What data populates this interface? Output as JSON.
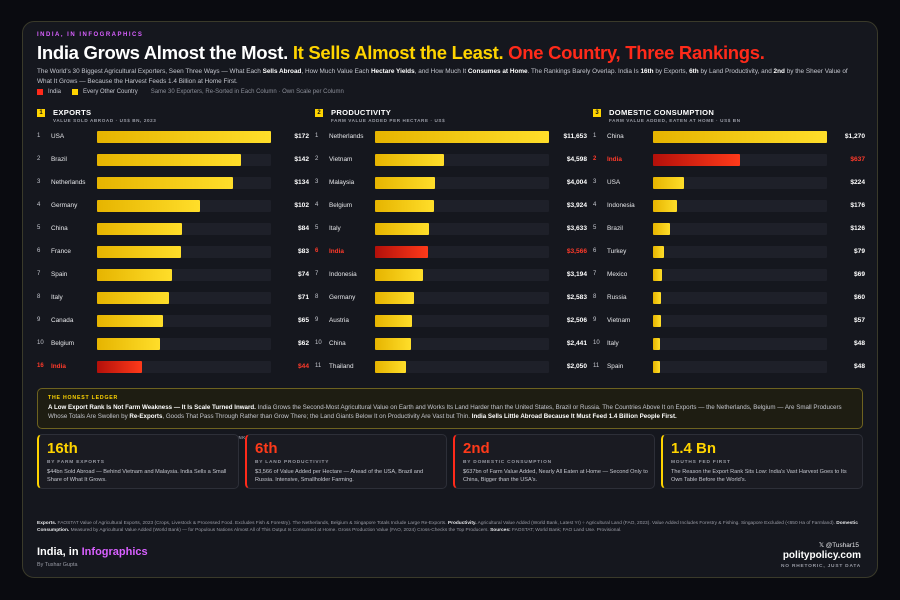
{
  "brand_top": "INDIA, IN INFOGRAPHICS",
  "headline": {
    "part1": "India Grows Almost the Most.",
    "part2": "It Sells Almost the Least.",
    "part3": "One Country, Three Rankings."
  },
  "dek": {
    "s1": "The World's 30 Biggest Agricultural Exporters, Seen Three Ways — What Each ",
    "b1": "Sells Abroad",
    "s2": ", How Much Value Each ",
    "b2": "Hectare Yields",
    "s3": ", and How Much It ",
    "b3": "Consumes at Home",
    "s4": ". The Rankings Barely Overlap. India Is ",
    "b4": "16th",
    "s5": " by Exports, ",
    "b5": "6th",
    "s6": " by Land Productivity, and ",
    "b6": "2nd",
    "s7": " by the Sheer Value of What It Grows — Because the Harvest Feeds 1.4 Billion at Home First."
  },
  "legend": {
    "india": "India",
    "other": "Every Other Country",
    "note": "Same 30 Exporters, Re-Sorted in Each Column · Own Scale per Column"
  },
  "colors": {
    "india": "#ff2a1a",
    "other": "#ffd400"
  },
  "chart_data": [
    {
      "type": "bar",
      "num": "1",
      "title": "EXPORTS",
      "subtitle": "VALUE SOLD ABROAD · US$ BN, 2023",
      "max": 172,
      "ranks": [
        "1",
        "2",
        "3",
        "4",
        "5",
        "6",
        "7",
        "8",
        "9",
        "10",
        "16"
      ],
      "categories": [
        "USA",
        "Brazil",
        "Netherlands",
        "Germany",
        "China",
        "France",
        "Spain",
        "Italy",
        "Canada",
        "Belgium",
        "India"
      ],
      "values": [
        172,
        142,
        134,
        102,
        84,
        83,
        74,
        71,
        65,
        62,
        44
      ],
      "labels": [
        "$172",
        "$142",
        "$134",
        "$102",
        "$84",
        "$83",
        "$74",
        "$71",
        "$65",
        "$62",
        "$44"
      ],
      "highlight": [
        10
      ],
      "note": "RANKS 11–15 NOT SHOWN"
    },
    {
      "type": "bar",
      "num": "2",
      "title": "PRODUCTIVITY",
      "subtitle": "FARM VALUE ADDED PER HECTARE · US$",
      "max": 11653,
      "ranks": [
        "1",
        "2",
        "3",
        "4",
        "5",
        "6",
        "7",
        "8",
        "9",
        "10",
        "11"
      ],
      "categories": [
        "Netherlands",
        "Vietnam",
        "Malaysia",
        "Belgium",
        "Italy",
        "India",
        "Indonesia",
        "Germany",
        "Austria",
        "China",
        "Thailand"
      ],
      "values": [
        11653,
        4598,
        4004,
        3924,
        3633,
        3566,
        3194,
        2583,
        2506,
        2441,
        2050
      ],
      "labels": [
        "$11,653",
        "$4,598",
        "$4,004",
        "$3,924",
        "$3,633",
        "$3,566",
        "$3,194",
        "$2,583",
        "$2,506",
        "$2,441",
        "$2,050"
      ],
      "highlight": [
        5
      ]
    },
    {
      "type": "bar",
      "num": "3",
      "title": "DOMESTIC CONSUMPTION",
      "subtitle": "FARM VALUE ADDED, EATEN AT HOME · US$ BN",
      "max": 1270,
      "ranks": [
        "1",
        "2",
        "3",
        "4",
        "5",
        "6",
        "7",
        "8",
        "9",
        "10",
        "11"
      ],
      "categories": [
        "China",
        "India",
        "USA",
        "Indonesia",
        "Brazil",
        "Turkey",
        "Mexico",
        "Russia",
        "Vietnam",
        "Italy",
        "Spain"
      ],
      "values": [
        1270,
        637,
        224,
        176,
        126,
        79,
        69,
        60,
        57,
        48,
        48
      ],
      "labels": [
        "$1,270",
        "$637",
        "$224",
        "$176",
        "$126",
        "$79",
        "$69",
        "$60",
        "$57",
        "$48",
        "$48"
      ],
      "highlight": [
        1
      ]
    }
  ],
  "ledger": {
    "title": "THE HONEST LEDGER",
    "b1": "A Low Export Rank Is Not Farm Weakness — It Is Scale Turned Inward.",
    "s1": " India Grows the Second-Most Agricultural Value on Earth and Works Its Land Harder than the United States, Brazil or Russia. The Countries Above It on Exports — the Netherlands, Belgium — Are Small Producers Whose Totals Are Swollen by ",
    "b2": "Re-Exports",
    "s2": ", Goods That Pass Through Rather than Grow There; the Land Giants Below It on Productivity Are Vast but Thin. ",
    "b3": "India Sells Little Abroad Because It Must Feed 1.4 Billion People First."
  },
  "stats": [
    {
      "big": "16th",
      "label": "BY FARM EXPORTS",
      "desc": "$44bn Sold Abroad — Behind Vietnam and Malaysia. India Sells a Small Share of What It Grows."
    },
    {
      "big": "6th",
      "label": "BY LAND PRODUCTIVITY",
      "desc": "$3,566 of Value Added per Hectare — Ahead of the USA, Brazil and Russia. Intensive, Smallholder Farming."
    },
    {
      "big": "2nd",
      "label": "BY DOMESTIC CONSUMPTION",
      "desc": "$637bn of Farm Value Added, Nearly All Eaten at Home — Second Only to China, Bigger than the USA's."
    },
    {
      "big": "1.4 Bn",
      "label": "MOUTHS FED FIRST",
      "desc": "The Reason the Export Rank Sits Low: India's Vast Harvest Goes to Its Own Table Before the World's."
    }
  ],
  "sources": {
    "b1": "Exports.",
    "s1": " FAOSTAT Value of Agricultural Exports, 2023 (Crops, Livestock & Processed Food. Excludes Fish & Forestry). The Netherlands, Belgium & Singapore Totals Include Large Re-Exports. ",
    "b2": "Productivity.",
    "s2": " Agricultural Value Added (World Bank, Latest Yr) ÷ Agricultural Land (FAO, 2023). Value Added Includes Forestry & Fishing. Singapore Excluded (<650 Ha of Farmland). ",
    "b3": "Domestic Consumption.",
    "s3": " Measured by Agricultural Value Added (World Bank) — for Populous Nations Almost All of This Output Is Consumed at Home. Gross Production Value (FAO, 2024) Cross-Checks the Top Producers. ",
    "b4": "Sources:",
    "s4": " FAOSTAT; World Bank; FAO Land Use. Provisional."
  },
  "footer": {
    "brand1": "India, in ",
    "brand2": "Infographics",
    "byline": "By Tushar Gupta",
    "handle": "𝕏  @Tushar15",
    "site": "politypolicy.com",
    "tagline": "NO RHETORIC, JUST DATA"
  }
}
